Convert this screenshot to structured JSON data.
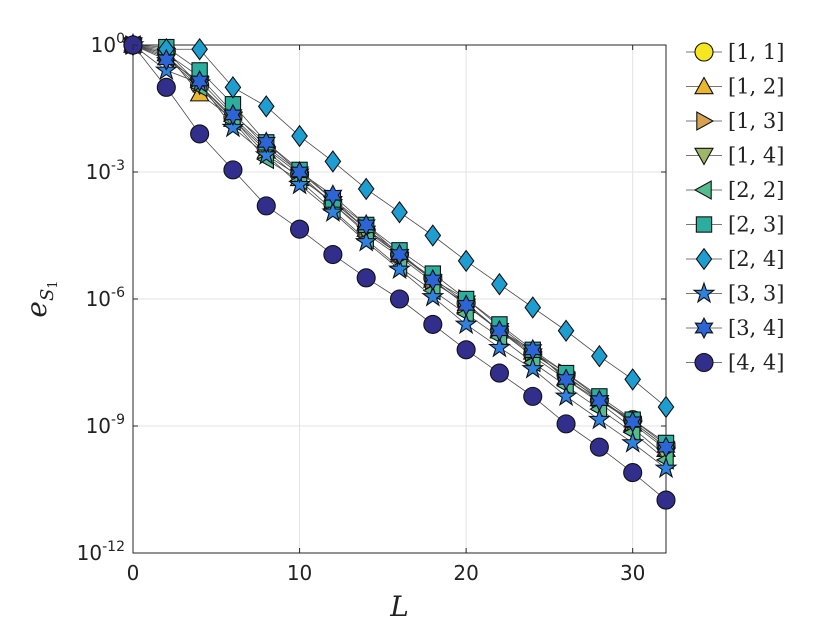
{
  "chart_data": {
    "type": "scatter",
    "title": "",
    "xlabel": "L",
    "ylabel_main": "e",
    "ylabel_sub": "S",
    "ylabel_subsub": "1",
    "xlim": [
      0,
      32
    ],
    "ylim_log10": [
      -12,
      0
    ],
    "y_scale": "log",
    "grid": true,
    "legend_position": "outside-right",
    "xticks": [
      0,
      10,
      20,
      30
    ],
    "xtick_labels": [
      "0",
      "10",
      "20",
      "30"
    ],
    "yticks_exp": [
      0,
      -3,
      -6,
      -9,
      -12
    ],
    "ytick_base": "10",
    "ytick_exps": [
      "0",
      "-3",
      "-6",
      "-9",
      "-12"
    ],
    "x": [
      0,
      2,
      4,
      6,
      8,
      10,
      12,
      14,
      16,
      18,
      20,
      22,
      24,
      26,
      28,
      30,
      32
    ],
    "series": [
      {
        "name": "[1, 1]",
        "marker": "circle",
        "color": "#f5e61f",
        "log10_values": [
          0,
          -0.15,
          -0.95,
          -1.7,
          -2.45,
          -3.05,
          -3.75,
          -4.4,
          -4.95,
          -5.5,
          -6.1,
          -6.75,
          -7.3,
          -7.8,
          -8.4,
          -8.85,
          -9.45
        ]
      },
      {
        "name": "[1, 2]",
        "marker": "triangle-up",
        "color": "#eab630",
        "log10_values": [
          0,
          -0.2,
          -1.15,
          -1.75,
          -2.5,
          -3.15,
          -3.7,
          -4.35,
          -4.95,
          -5.55,
          -6.15,
          -6.75,
          -7.25,
          -7.85,
          -8.35,
          -8.95,
          -9.55
        ]
      },
      {
        "name": "[1, 3]",
        "marker": "triangle-right",
        "color": "#d7a24f",
        "log10_values": [
          0,
          -0.2,
          -0.75,
          -1.6,
          -2.4,
          -3.0,
          -3.65,
          -4.35,
          -4.9,
          -5.55,
          -6.0,
          -6.65,
          -7.25,
          -7.75,
          -8.35,
          -8.9,
          -9.5
        ]
      },
      {
        "name": "[1, 4]",
        "marker": "triangle-down",
        "color": "#9db667",
        "log10_values": [
          0,
          -0.25,
          -0.95,
          -1.75,
          -2.6,
          -3.1,
          -3.75,
          -4.45,
          -5.0,
          -5.6,
          -6.1,
          -6.75,
          -7.35,
          -7.9,
          -8.45,
          -9.05,
          -9.7
        ]
      },
      {
        "name": "[2, 2]",
        "marker": "triangle-left",
        "color": "#54bd8e",
        "log10_values": [
          0,
          -0.3,
          -1.0,
          -1.8,
          -2.7,
          -3.2,
          -3.9,
          -4.6,
          -5.25,
          -5.8,
          -6.35,
          -6.9,
          -7.5,
          -8.05,
          -8.6,
          -9.15,
          -9.8
        ]
      },
      {
        "name": "[2, 3]",
        "marker": "square",
        "color": "#2bae9e",
        "log10_values": [
          0,
          -0.05,
          -0.6,
          -1.4,
          -2.3,
          -2.95,
          -3.65,
          -4.25,
          -4.85,
          -5.4,
          -6.0,
          -6.6,
          -7.2,
          -7.75,
          -8.3,
          -8.85,
          -9.4
        ]
      },
      {
        "name": "[2, 4]",
        "marker": "diamond",
        "color": "#1e9ed0",
        "log10_values": [
          0,
          -0.1,
          -0.1,
          -1.0,
          -1.45,
          -2.15,
          -2.75,
          -3.4,
          -3.95,
          -4.5,
          -5.1,
          -5.65,
          -6.2,
          -6.75,
          -7.35,
          -7.9,
          -8.55
        ]
      },
      {
        "name": "[3, 3]",
        "marker": "star",
        "color": "#2e82e0",
        "log10_values": [
          0,
          -0.6,
          -0.9,
          -1.95,
          -2.6,
          -3.3,
          -3.95,
          -4.65,
          -5.3,
          -5.95,
          -6.6,
          -7.15,
          -7.65,
          -8.3,
          -8.85,
          -9.4,
          -10.0
        ]
      },
      {
        "name": "[3, 4]",
        "marker": "hexagram",
        "color": "#2c66d6",
        "log10_values": [
          0,
          -0.35,
          -0.85,
          -1.65,
          -2.3,
          -3.0,
          -3.55,
          -4.25,
          -4.95,
          -5.55,
          -6.15,
          -6.75,
          -7.2,
          -7.9,
          -8.4,
          -8.9,
          -9.5
        ]
      },
      {
        "name": "[4, 4]",
        "marker": "circle",
        "color": "#312e8c",
        "log10_values": [
          0,
          -1.0,
          -2.1,
          -2.95,
          -3.8,
          -4.35,
          -4.95,
          -5.5,
          -6.0,
          -6.6,
          -7.2,
          -7.75,
          -8.3,
          -8.95,
          -9.5,
          -10.1,
          -10.75
        ]
      }
    ]
  }
}
